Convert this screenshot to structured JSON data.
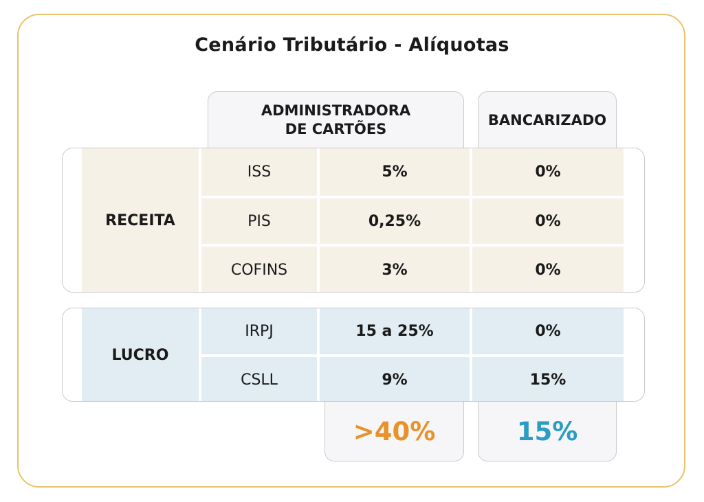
{
  "title": "Cenário Tributário - Alíquotas",
  "columns": {
    "administradora_line1": "ADMINISTRADORA",
    "administradora_line2": "DE CARTÕES",
    "bancarizado": "BANCARIZADO"
  },
  "receita": {
    "label": "RECEITA",
    "rows": [
      {
        "tax": "ISS",
        "administradora": "5%",
        "bancarizado": "0%"
      },
      {
        "tax": "PIS",
        "administradora": "0,25%",
        "bancarizado": "0%"
      },
      {
        "tax": "COFINS",
        "administradora": "3%",
        "bancarizado": "0%"
      }
    ]
  },
  "lucro": {
    "label": "LUCRO",
    "rows": [
      {
        "tax": "IRPJ",
        "administradora": "15 a 25%",
        "bancarizado": "0%"
      },
      {
        "tax": "CSLL",
        "administradora": "9%",
        "bancarizado": "15%"
      }
    ]
  },
  "totals": {
    "administradora": ">40%",
    "bancarizado": "15%"
  },
  "colors": {
    "frame_border": "#eac26a",
    "receita_bg": "#f6f1e7",
    "lucro_bg": "#e1ecf3",
    "total_administradora": "#e8922a",
    "total_bancarizado": "#2b9cc4"
  }
}
